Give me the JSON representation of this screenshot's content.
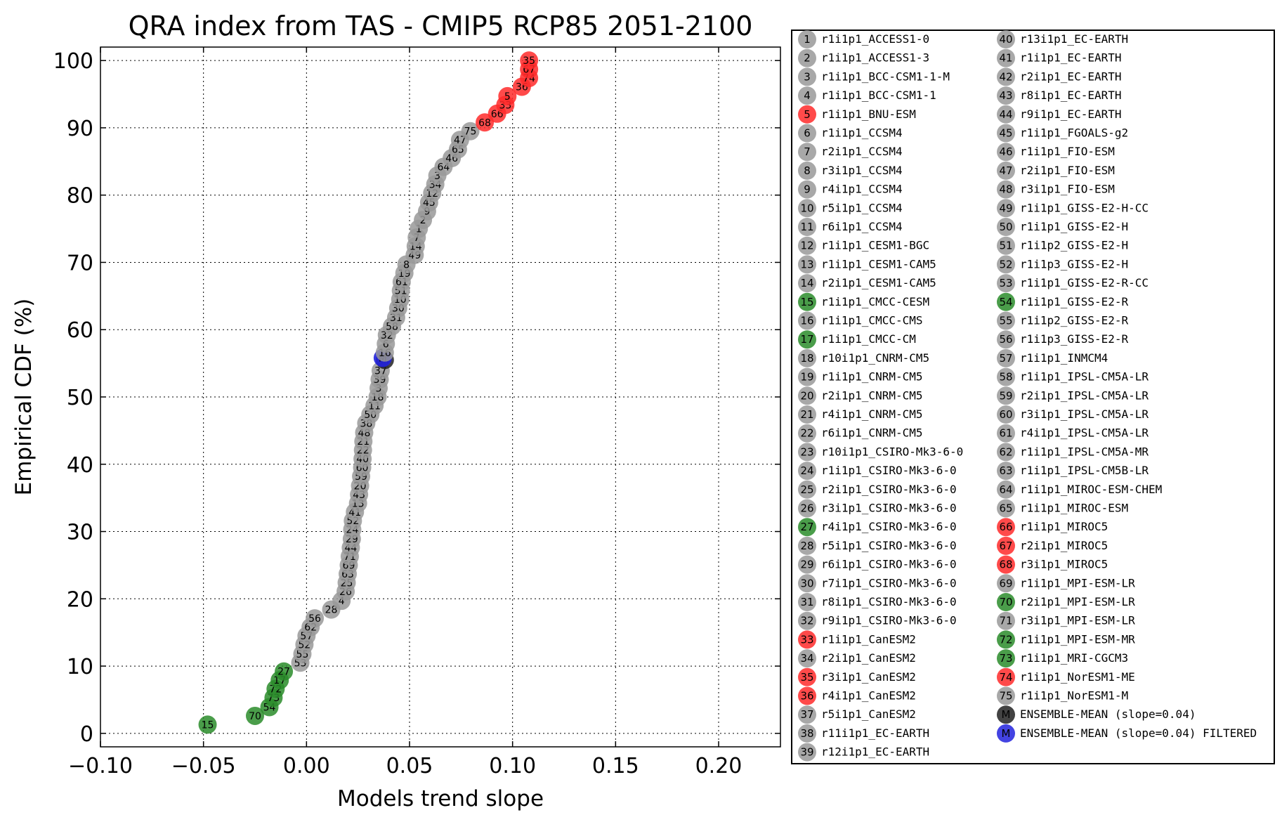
{
  "chart_data": {
    "type": "scatter",
    "title": "QRA index from TAS - CMIP5 RCP85 2051-2100",
    "xlabel": "Models trend slope",
    "ylabel": "Empirical CDF (%)",
    "xlim": [
      -0.1,
      0.23
    ],
    "ylim": [
      -2,
      102
    ],
    "xticks": [
      -0.1,
      -0.05,
      0.0,
      0.05,
      0.1,
      0.15,
      0.2
    ],
    "xtick_labels": [
      "−0.10",
      "−0.05",
      "0.00",
      "0.05",
      "0.10",
      "0.15",
      "0.20"
    ],
    "yticks": [
      0,
      10,
      20,
      30,
      40,
      50,
      60,
      70,
      80,
      90,
      100
    ],
    "ytick_labels": [
      "0",
      "10",
      "20",
      "30",
      "40",
      "50",
      "60",
      "70",
      "80",
      "90",
      "100"
    ],
    "grid": true,
    "colors": {
      "gray": "#999999",
      "red": "#ff2a2a",
      "green": "#2a8c2a",
      "black": "#222222",
      "blue": "#2222dd"
    },
    "points": [
      {
        "label": "15",
        "x": -0.048,
        "y": 1.3,
        "color": "green"
      },
      {
        "label": "70",
        "x": -0.025,
        "y": 2.6,
        "color": "green"
      },
      {
        "label": "54",
        "x": -0.018,
        "y": 3.9,
        "color": "green"
      },
      {
        "label": "73",
        "x": -0.016,
        "y": 5.3,
        "color": "green"
      },
      {
        "label": "72",
        "x": -0.015,
        "y": 6.6,
        "color": "green"
      },
      {
        "label": "17",
        "x": -0.013,
        "y": 7.9,
        "color": "green"
      },
      {
        "label": "27",
        "x": -0.011,
        "y": 9.2,
        "color": "green"
      },
      {
        "label": "53",
        "x": -0.003,
        "y": 10.5,
        "color": "gray"
      },
      {
        "label": "55",
        "x": -0.002,
        "y": 11.8,
        "color": "gray"
      },
      {
        "label": "52",
        "x": -0.001,
        "y": 13.2,
        "color": "gray"
      },
      {
        "label": "57",
        "x": 0.0,
        "y": 14.5,
        "color": "gray"
      },
      {
        "label": "62",
        "x": 0.002,
        "y": 15.8,
        "color": "gray"
      },
      {
        "label": "56",
        "x": 0.004,
        "y": 17.1,
        "color": "gray"
      },
      {
        "label": "28",
        "x": 0.012,
        "y": 18.4,
        "color": "gray"
      },
      {
        "label": "4",
        "x": 0.017,
        "y": 19.7,
        "color": "gray"
      },
      {
        "label": "26",
        "x": 0.019,
        "y": 21.1,
        "color": "gray"
      },
      {
        "label": "25",
        "x": 0.0195,
        "y": 22.4,
        "color": "gray"
      },
      {
        "label": "63",
        "x": 0.02,
        "y": 23.7,
        "color": "gray"
      },
      {
        "label": "69",
        "x": 0.0205,
        "y": 25.0,
        "color": "gray"
      },
      {
        "label": "71",
        "x": 0.021,
        "y": 26.3,
        "color": "gray"
      },
      {
        "label": "44",
        "x": 0.0215,
        "y": 27.6,
        "color": "gray"
      },
      {
        "label": "29",
        "x": 0.022,
        "y": 28.9,
        "color": "gray"
      },
      {
        "label": "24",
        "x": 0.0222,
        "y": 30.3,
        "color": "gray"
      },
      {
        "label": "52",
        "x": 0.0225,
        "y": 31.6,
        "color": "gray"
      },
      {
        "label": "41",
        "x": 0.0235,
        "y": 32.9,
        "color": "gray"
      },
      {
        "label": "13",
        "x": 0.025,
        "y": 34.2,
        "color": "gray"
      },
      {
        "label": "43",
        "x": 0.0255,
        "y": 35.5,
        "color": "gray"
      },
      {
        "label": "20",
        "x": 0.026,
        "y": 36.8,
        "color": "gray"
      },
      {
        "label": "59",
        "x": 0.0265,
        "y": 38.2,
        "color": "gray"
      },
      {
        "label": "60",
        "x": 0.027,
        "y": 39.5,
        "color": "gray"
      },
      {
        "label": "40",
        "x": 0.0272,
        "y": 40.8,
        "color": "gray"
      },
      {
        "label": "22",
        "x": 0.0274,
        "y": 42.1,
        "color": "gray"
      },
      {
        "label": "21",
        "x": 0.0276,
        "y": 43.4,
        "color": "gray"
      },
      {
        "label": "48",
        "x": 0.028,
        "y": 44.7,
        "color": "gray"
      },
      {
        "label": "38",
        "x": 0.029,
        "y": 46.1,
        "color": "gray"
      },
      {
        "label": "50",
        "x": 0.031,
        "y": 47.4,
        "color": "gray"
      },
      {
        "label": "11",
        "x": 0.033,
        "y": 48.7,
        "color": "gray"
      },
      {
        "label": "18",
        "x": 0.0345,
        "y": 50.0,
        "color": "gray"
      },
      {
        "label": "3",
        "x": 0.035,
        "y": 51.3,
        "color": "gray"
      },
      {
        "label": "39",
        "x": 0.0355,
        "y": 52.6,
        "color": "gray"
      },
      {
        "label": "37",
        "x": 0.036,
        "y": 53.9,
        "color": "gray"
      },
      {
        "label": "M",
        "x": 0.038,
        "y": 55.5,
        "color": "black"
      },
      {
        "label": "M",
        "x": 0.037,
        "y": 55.8,
        "color": "blue"
      },
      {
        "label": "16",
        "x": 0.038,
        "y": 56.6,
        "color": "gray"
      },
      {
        "label": "6",
        "x": 0.0385,
        "y": 57.9,
        "color": "gray"
      },
      {
        "label": "32",
        "x": 0.039,
        "y": 59.2,
        "color": "gray"
      },
      {
        "label": "58",
        "x": 0.0415,
        "y": 60.5,
        "color": "gray"
      },
      {
        "label": "31",
        "x": 0.0435,
        "y": 61.8,
        "color": "gray"
      },
      {
        "label": "30",
        "x": 0.0445,
        "y": 63.2,
        "color": "gray"
      },
      {
        "label": "10",
        "x": 0.0455,
        "y": 64.5,
        "color": "gray"
      },
      {
        "label": "51",
        "x": 0.0458,
        "y": 65.8,
        "color": "gray"
      },
      {
        "label": "61",
        "x": 0.0462,
        "y": 67.1,
        "color": "gray"
      },
      {
        "label": "19",
        "x": 0.0475,
        "y": 68.4,
        "color": "gray"
      },
      {
        "label": "8",
        "x": 0.0485,
        "y": 69.7,
        "color": "gray"
      },
      {
        "label": "49",
        "x": 0.0525,
        "y": 71.1,
        "color": "gray"
      },
      {
        "label": "14",
        "x": 0.053,
        "y": 72.4,
        "color": "gray"
      },
      {
        "label": "7",
        "x": 0.0535,
        "y": 73.7,
        "color": "gray"
      },
      {
        "label": "1",
        "x": 0.0545,
        "y": 75.0,
        "color": "gray"
      },
      {
        "label": "2",
        "x": 0.0565,
        "y": 76.3,
        "color": "gray"
      },
      {
        "label": "9",
        "x": 0.0585,
        "y": 77.6,
        "color": "gray"
      },
      {
        "label": "45",
        "x": 0.0595,
        "y": 78.9,
        "color": "gray"
      },
      {
        "label": "12",
        "x": 0.061,
        "y": 80.3,
        "color": "gray"
      },
      {
        "label": "34",
        "x": 0.0625,
        "y": 81.6,
        "color": "gray"
      },
      {
        "label": "3",
        "x": 0.0635,
        "y": 82.9,
        "color": "gray"
      },
      {
        "label": "64",
        "x": 0.0665,
        "y": 84.2,
        "color": "gray"
      },
      {
        "label": "46",
        "x": 0.0705,
        "y": 85.5,
        "color": "gray"
      },
      {
        "label": "65",
        "x": 0.0735,
        "y": 86.8,
        "color": "gray"
      },
      {
        "label": "47",
        "x": 0.0745,
        "y": 88.2,
        "color": "gray"
      },
      {
        "label": "75",
        "x": 0.0795,
        "y": 89.5,
        "color": "gray"
      },
      {
        "label": "68",
        "x": 0.0865,
        "y": 90.8,
        "color": "red"
      },
      {
        "label": "66",
        "x": 0.0925,
        "y": 92.1,
        "color": "red"
      },
      {
        "label": "33",
        "x": 0.0965,
        "y": 93.4,
        "color": "red"
      },
      {
        "label": "5",
        "x": 0.0975,
        "y": 94.7,
        "color": "red"
      },
      {
        "label": "36",
        "x": 0.1045,
        "y": 96.1,
        "color": "red"
      },
      {
        "label": "74",
        "x": 0.108,
        "y": 97.4,
        "color": "red"
      },
      {
        "label": "67",
        "x": 0.108,
        "y": 98.7,
        "color": "red"
      },
      {
        "label": "35",
        "x": 0.108,
        "y": 100.0,
        "color": "red"
      }
    ],
    "legend_position": "right",
    "legend": [
      {
        "num": "1",
        "name": "r1i1p1_ACCESS1-0",
        "color": "gray"
      },
      {
        "num": "2",
        "name": "r1i1p1_ACCESS1-3",
        "color": "gray"
      },
      {
        "num": "3",
        "name": "r1i1p1_BCC-CSM1-1-M",
        "color": "gray"
      },
      {
        "num": "4",
        "name": "r1i1p1_BCC-CSM1-1",
        "color": "gray"
      },
      {
        "num": "5",
        "name": "r1i1p1_BNU-ESM",
        "color": "red"
      },
      {
        "num": "6",
        "name": "r1i1p1_CCSM4",
        "color": "gray"
      },
      {
        "num": "7",
        "name": "r2i1p1_CCSM4",
        "color": "gray"
      },
      {
        "num": "8",
        "name": "r3i1p1_CCSM4",
        "color": "gray"
      },
      {
        "num": "9",
        "name": "r4i1p1_CCSM4",
        "color": "gray"
      },
      {
        "num": "10",
        "name": "r5i1p1_CCSM4",
        "color": "gray"
      },
      {
        "num": "11",
        "name": "r6i1p1_CCSM4",
        "color": "gray"
      },
      {
        "num": "12",
        "name": "r1i1p1_CESM1-BGC",
        "color": "gray"
      },
      {
        "num": "13",
        "name": "r1i1p1_CESM1-CAM5",
        "color": "gray"
      },
      {
        "num": "14",
        "name": "r2i1p1_CESM1-CAM5",
        "color": "gray"
      },
      {
        "num": "15",
        "name": "r1i1p1_CMCC-CESM",
        "color": "green"
      },
      {
        "num": "16",
        "name": "r1i1p1_CMCC-CMS",
        "color": "gray"
      },
      {
        "num": "17",
        "name": "r1i1p1_CMCC-CM",
        "color": "green"
      },
      {
        "num": "18",
        "name": "r10i1p1_CNRM-CM5",
        "color": "gray"
      },
      {
        "num": "19",
        "name": "r1i1p1_CNRM-CM5",
        "color": "gray"
      },
      {
        "num": "20",
        "name": "r2i1p1_CNRM-CM5",
        "color": "gray"
      },
      {
        "num": "21",
        "name": "r4i1p1_CNRM-CM5",
        "color": "gray"
      },
      {
        "num": "22",
        "name": "r6i1p1_CNRM-CM5",
        "color": "gray"
      },
      {
        "num": "23",
        "name": "r10i1p1_CSIRO-Mk3-6-0",
        "color": "gray"
      },
      {
        "num": "24",
        "name": "r1i1p1_CSIRO-Mk3-6-0",
        "color": "gray"
      },
      {
        "num": "25",
        "name": "r2i1p1_CSIRO-Mk3-6-0",
        "color": "gray"
      },
      {
        "num": "26",
        "name": "r3i1p1_CSIRO-Mk3-6-0",
        "color": "gray"
      },
      {
        "num": "27",
        "name": "r4i1p1_CSIRO-Mk3-6-0",
        "color": "green"
      },
      {
        "num": "28",
        "name": "r5i1p1_CSIRO-Mk3-6-0",
        "color": "gray"
      },
      {
        "num": "29",
        "name": "r6i1p1_CSIRO-Mk3-6-0",
        "color": "gray"
      },
      {
        "num": "30",
        "name": "r7i1p1_CSIRO-Mk3-6-0",
        "color": "gray"
      },
      {
        "num": "31",
        "name": "r8i1p1_CSIRO-Mk3-6-0",
        "color": "gray"
      },
      {
        "num": "32",
        "name": "r9i1p1_CSIRO-Mk3-6-0",
        "color": "gray"
      },
      {
        "num": "33",
        "name": "r1i1p1_CanESM2",
        "color": "red"
      },
      {
        "num": "34",
        "name": "r2i1p1_CanESM2",
        "color": "gray"
      },
      {
        "num": "35",
        "name": "r3i1p1_CanESM2",
        "color": "red"
      },
      {
        "num": "36",
        "name": "r4i1p1_CanESM2",
        "color": "red"
      },
      {
        "num": "37",
        "name": "r5i1p1_CanESM2",
        "color": "gray"
      },
      {
        "num": "38",
        "name": "r11i1p1_EC-EARTH",
        "color": "gray"
      },
      {
        "num": "39",
        "name": "r12i1p1_EC-EARTH",
        "color": "gray"
      },
      {
        "num": "40",
        "name": "r13i1p1_EC-EARTH",
        "color": "gray"
      },
      {
        "num": "41",
        "name": "r1i1p1_EC-EARTH",
        "color": "gray"
      },
      {
        "num": "42",
        "name": "r2i1p1_EC-EARTH",
        "color": "gray"
      },
      {
        "num": "43",
        "name": "r8i1p1_EC-EARTH",
        "color": "gray"
      },
      {
        "num": "44",
        "name": "r9i1p1_EC-EARTH",
        "color": "gray"
      },
      {
        "num": "45",
        "name": "r1i1p1_FGOALS-g2",
        "color": "gray"
      },
      {
        "num": "46",
        "name": "r1i1p1_FIO-ESM",
        "color": "gray"
      },
      {
        "num": "47",
        "name": "r2i1p1_FIO-ESM",
        "color": "gray"
      },
      {
        "num": "48",
        "name": "r3i1p1_FIO-ESM",
        "color": "gray"
      },
      {
        "num": "49",
        "name": "r1i1p1_GISS-E2-H-CC",
        "color": "gray"
      },
      {
        "num": "50",
        "name": "r1i1p1_GISS-E2-H",
        "color": "gray"
      },
      {
        "num": "51",
        "name": "r1i1p2_GISS-E2-H",
        "color": "gray"
      },
      {
        "num": "52",
        "name": "r1i1p3_GISS-E2-H",
        "color": "gray"
      },
      {
        "num": "53",
        "name": "r1i1p1_GISS-E2-R-CC",
        "color": "gray"
      },
      {
        "num": "54",
        "name": "r1i1p1_GISS-E2-R",
        "color": "green"
      },
      {
        "num": "55",
        "name": "r1i1p2_GISS-E2-R",
        "color": "gray"
      },
      {
        "num": "56",
        "name": "r1i1p3_GISS-E2-R",
        "color": "gray"
      },
      {
        "num": "57",
        "name": "r1i1p1_INMCM4",
        "color": "gray"
      },
      {
        "num": "58",
        "name": "r1i1p1_IPSL-CM5A-LR",
        "color": "gray"
      },
      {
        "num": "59",
        "name": "r2i1p1_IPSL-CM5A-LR",
        "color": "gray"
      },
      {
        "num": "60",
        "name": "r3i1p1_IPSL-CM5A-LR",
        "color": "gray"
      },
      {
        "num": "61",
        "name": "r4i1p1_IPSL-CM5A-LR",
        "color": "gray"
      },
      {
        "num": "62",
        "name": "r1i1p1_IPSL-CM5A-MR",
        "color": "gray"
      },
      {
        "num": "63",
        "name": "r1i1p1_IPSL-CM5B-LR",
        "color": "gray"
      },
      {
        "num": "64",
        "name": "r1i1p1_MIROC-ESM-CHEM",
        "color": "gray"
      },
      {
        "num": "65",
        "name": "r1i1p1_MIROC-ESM",
        "color": "gray"
      },
      {
        "num": "66",
        "name": "r1i1p1_MIROC5",
        "color": "red"
      },
      {
        "num": "67",
        "name": "r2i1p1_MIROC5",
        "color": "red"
      },
      {
        "num": "68",
        "name": "r3i1p1_MIROC5",
        "color": "red"
      },
      {
        "num": "69",
        "name": "r1i1p1_MPI-ESM-LR",
        "color": "gray"
      },
      {
        "num": "70",
        "name": "r2i1p1_MPI-ESM-LR",
        "color": "green"
      },
      {
        "num": "71",
        "name": "r3i1p1_MPI-ESM-LR",
        "color": "gray"
      },
      {
        "num": "72",
        "name": "r1i1p1_MPI-ESM-MR",
        "color": "green"
      },
      {
        "num": "73",
        "name": "r1i1p1_MRI-CGCM3",
        "color": "green"
      },
      {
        "num": "74",
        "name": "r1i1p1_NorESM1-ME",
        "color": "red"
      },
      {
        "num": "75",
        "name": "r1i1p1_NorESM1-M",
        "color": "gray"
      },
      {
        "num": "M",
        "name": "ENSEMBLE-MEAN (slope=0.04)",
        "color": "black"
      },
      {
        "num": "M",
        "name": "ENSEMBLE-MEAN (slope=0.04) FILTERED",
        "color": "blue"
      }
    ]
  }
}
